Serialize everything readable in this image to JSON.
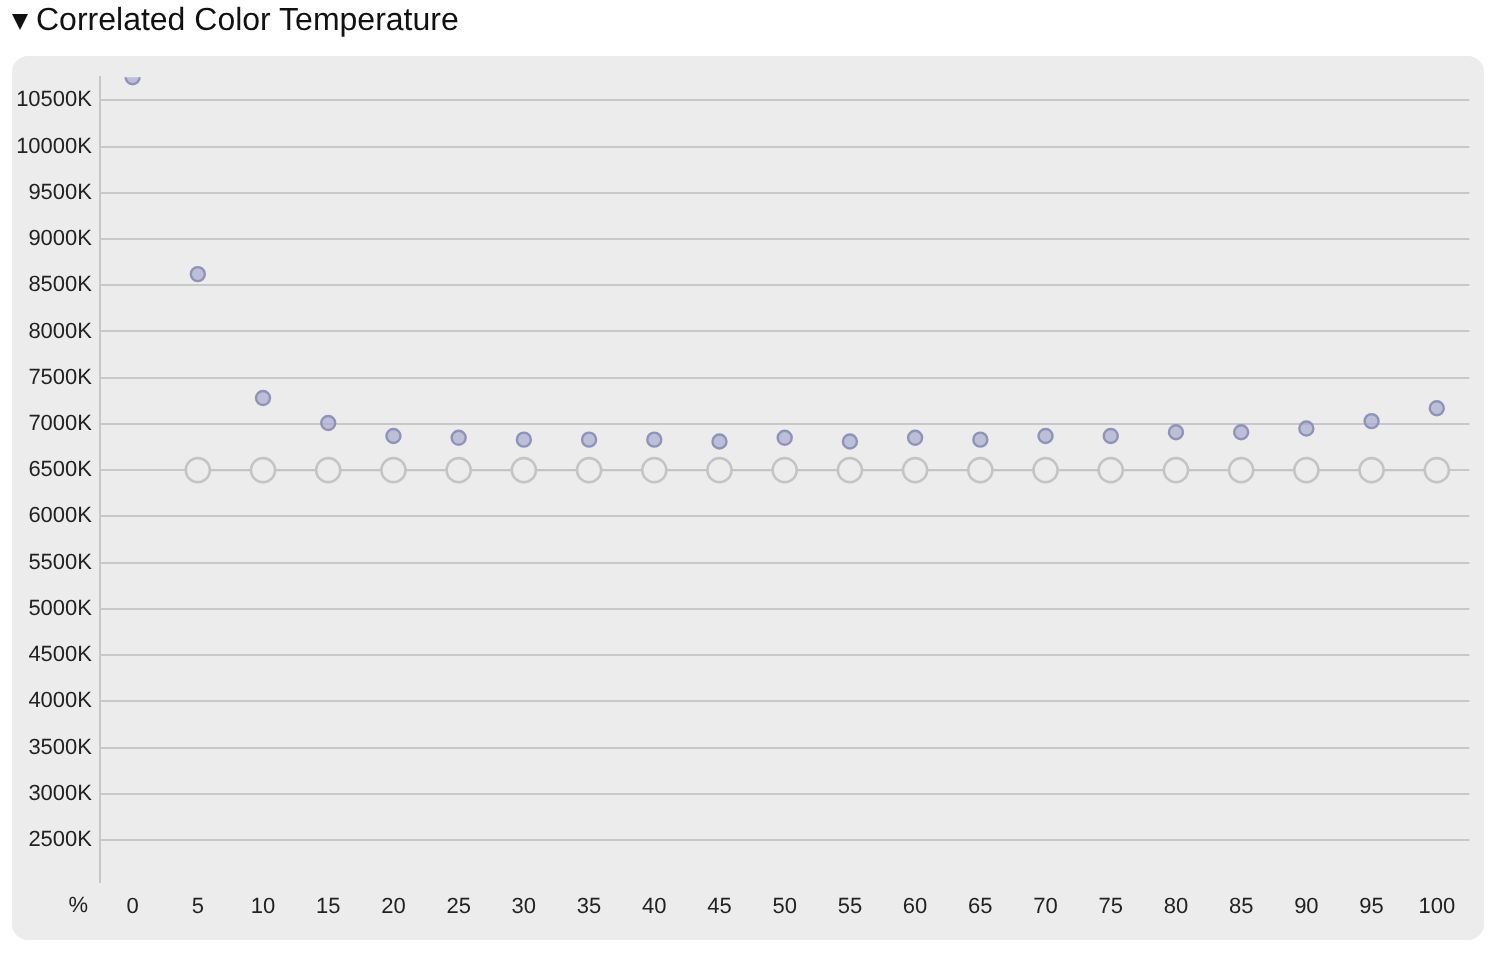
{
  "chart_data": {
    "type": "scatter",
    "title": "Correlated Color Temperature",
    "xlabel": "%",
    "categories": [
      "0",
      "5",
      "10",
      "15",
      "20",
      "25",
      "30",
      "35",
      "40",
      "45",
      "50",
      "55",
      "60",
      "65",
      "70",
      "75",
      "80",
      "85",
      "90",
      "95",
      "100"
    ],
    "series": [
      {
        "type": "scatter",
        "color": "#a4a8cc",
        "values": [
          10750,
          8620,
          7280,
          7010,
          6870,
          6850,
          6830,
          6830,
          6830,
          6810,
          6850,
          6810,
          6850,
          6830,
          6870,
          6870,
          6910,
          6910,
          6950,
          7030,
          7170
        ]
      },
      {
        "type": "line",
        "color": "#c4c4c4",
        "values": [
          null,
          6500,
          6500,
          6500,
          6500,
          6500,
          6500,
          6500,
          6500,
          6500,
          6500,
          6500,
          6500,
          6500,
          6500,
          6500,
          6500,
          6500,
          6500,
          6500,
          6500
        ]
      }
    ],
    "ylim": [
      2050,
      10750
    ],
    "yticks": [
      {
        "value": 2500,
        "label": "2500K"
      },
      {
        "value": 3000,
        "label": "3000K"
      },
      {
        "value": 3500,
        "label": "3500K"
      },
      {
        "value": 4000,
        "label": "4000K"
      },
      {
        "value": 4500,
        "label": "4500K"
      },
      {
        "value": 5000,
        "label": "5000K"
      },
      {
        "value": 5500,
        "label": "5500K"
      },
      {
        "value": 6000,
        "label": "6000K"
      },
      {
        "value": 6500,
        "label": "6500K"
      },
      {
        "value": 7000,
        "label": "7000K"
      },
      {
        "value": 7500,
        "label": "7500K"
      },
      {
        "value": 8000,
        "label": "8000K"
      },
      {
        "value": 8500,
        "label": "8500K"
      },
      {
        "value": 9000,
        "label": "9000K"
      },
      {
        "value": 9500,
        "label": "9500K"
      },
      {
        "value": 10000,
        "label": "10000K"
      },
      {
        "value": 10500,
        "label": "10500K"
      }
    ],
    "grid": "y",
    "legend": false,
    "marker": "circle"
  }
}
